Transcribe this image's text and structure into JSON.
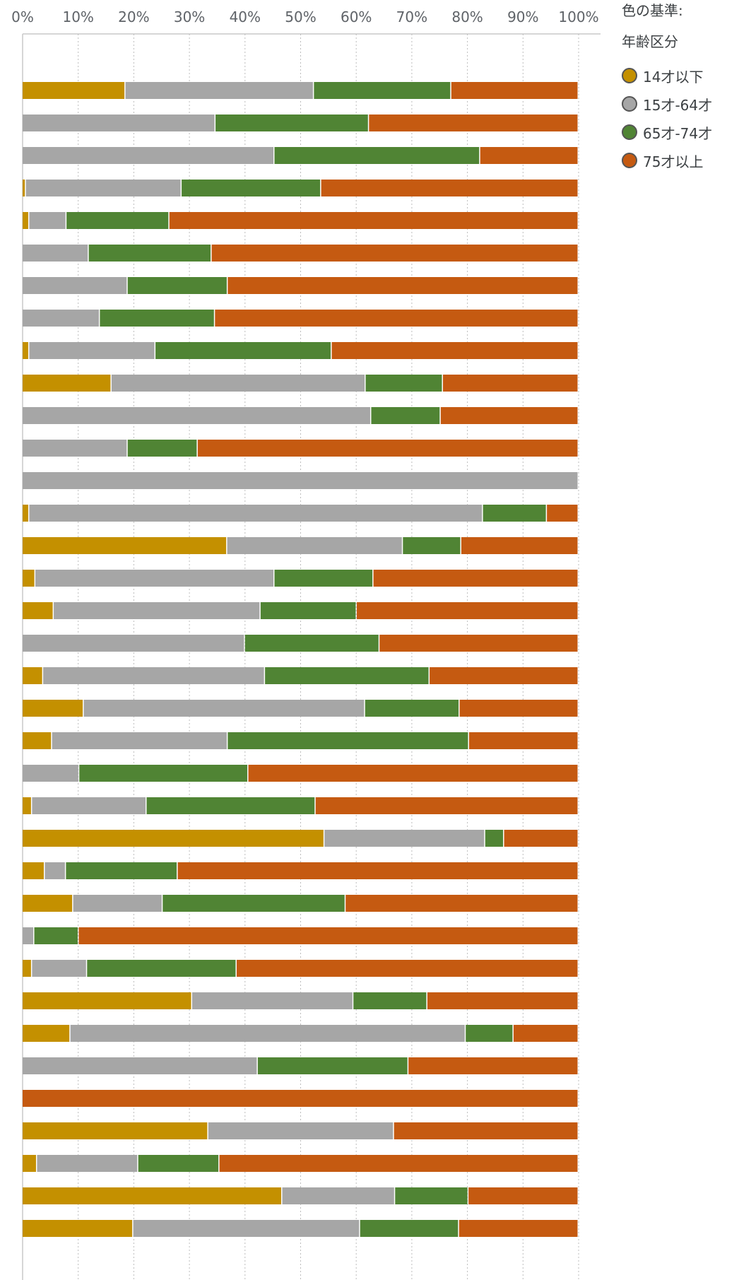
{
  "chart_data": {
    "type": "bar",
    "orientation": "horizontal",
    "stacked": "percent",
    "x_ticks": [
      "0%",
      "10%",
      "20%",
      "30%",
      "40%",
      "50%",
      "60%",
      "70%",
      "80%",
      "90%",
      "100%"
    ],
    "xlim": [
      0,
      100
    ],
    "grid": true,
    "legend_position": "right",
    "legend_title": "色の基準:",
    "legend_subtitle": "年齢区分",
    "series": [
      {
        "name": "14才以下",
        "color": "#c49000",
        "values": [
          18.5,
          0,
          0,
          0.6,
          1.2,
          0,
          0,
          0,
          1.2,
          16,
          0,
          0,
          0,
          1.2,
          36.8,
          2.3,
          5.6,
          0,
          3.7,
          11,
          5.3,
          0,
          1.7,
          54.3,
          4,
          9.1,
          0,
          1.7,
          30.5,
          8.6,
          0,
          0,
          33.4,
          2.6,
          46.7,
          19.9
        ]
      },
      {
        "name": "15才-64才",
        "color": "#a6a6a6",
        "values": [
          33.9,
          34.7,
          45.3,
          28,
          6.7,
          11.9,
          18.9,
          13.9,
          22.7,
          45.7,
          62.7,
          18.9,
          100,
          81.6,
          31.6,
          43,
          37.2,
          40,
          39.9,
          50.6,
          31.6,
          10.2,
          20.6,
          28.9,
          3.8,
          16.1,
          2.1,
          9.9,
          29,
          71.1,
          42.3,
          0,
          33.4,
          18.2,
          20.3,
          40.8
        ]
      },
      {
        "name": "65才-74才",
        "color": "#508434",
        "values": [
          24.7,
          27.6,
          37,
          25.1,
          18.5,
          22.1,
          18,
          20.7,
          31.7,
          13.9,
          12.5,
          12.6,
          0,
          11.5,
          10.5,
          17.8,
          17.3,
          24.2,
          29.6,
          17,
          43.4,
          30.4,
          30.4,
          3.4,
          20.1,
          32.9,
          8,
          26.9,
          13.3,
          8.6,
          27.1,
          0,
          0,
          14.6,
          13.2,
          17.8
        ]
      },
      {
        "name": "75才以上",
        "color": "#c55a11",
        "values": [
          22.9,
          37.7,
          17.7,
          46.3,
          73.6,
          66,
          63.1,
          65.4,
          44.4,
          24.4,
          24.8,
          68.5,
          0,
          5.7,
          21.1,
          36.9,
          39.9,
          35.8,
          26.8,
          21.4,
          19.7,
          59.4,
          47.3,
          13.4,
          72.1,
          41.9,
          89.9,
          61.5,
          27.2,
          11.7,
          30.6,
          100,
          33.2,
          64.6,
          19.8,
          21.5
        ]
      }
    ]
  }
}
